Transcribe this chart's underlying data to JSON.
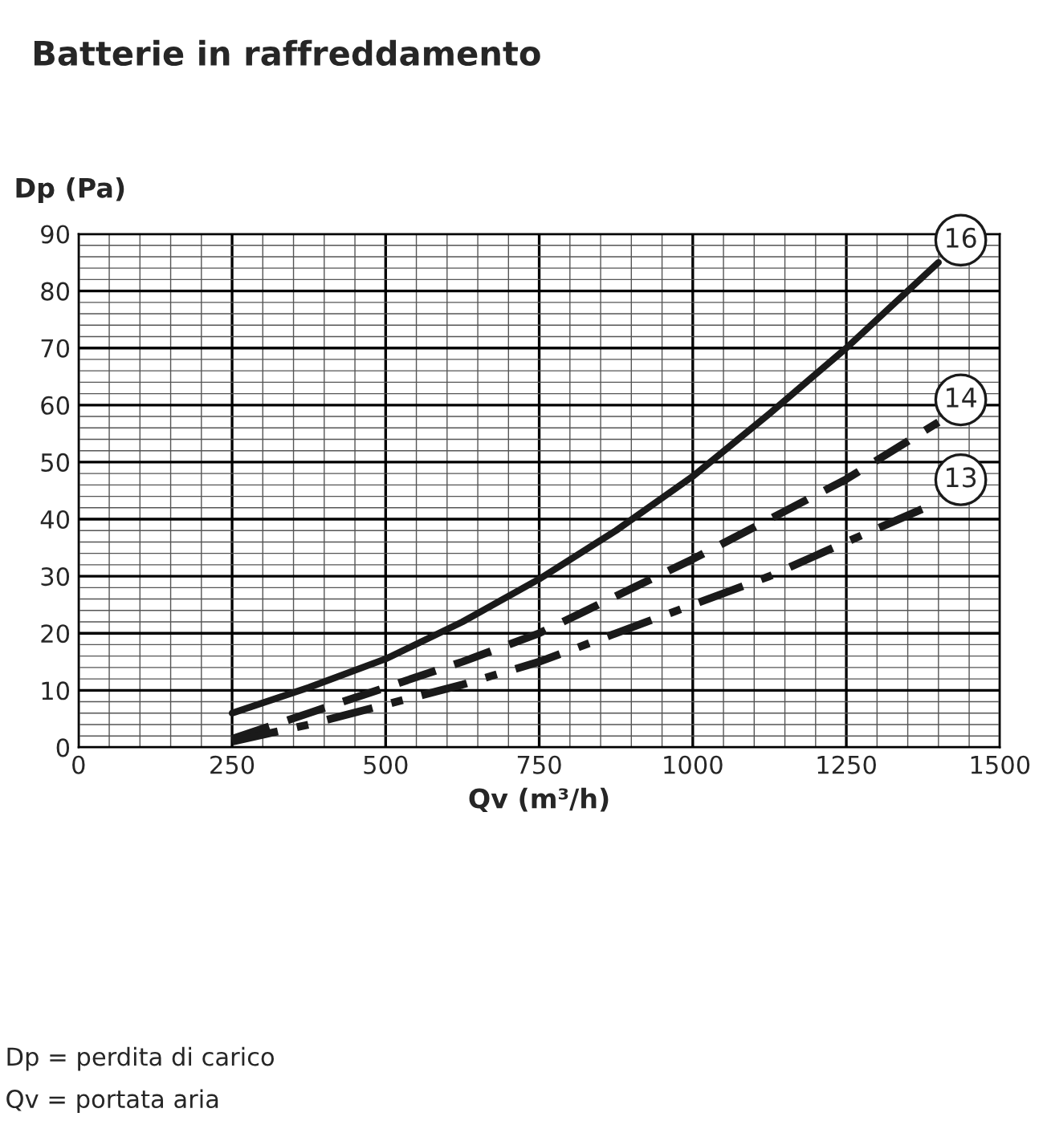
{
  "chart_data": {
    "type": "line",
    "title": "Batterie in raffreddamento",
    "xlabel": "Qv (m³/h)",
    "ylabel": "Dp (Pa)",
    "x": [
      250,
      375,
      500,
      625,
      750,
      875,
      1000,
      1125,
      1250,
      1400
    ],
    "series": [
      {
        "name": "16",
        "color": "#1a1a1a",
        "line_style": "solid",
        "values": [
          6,
          10.5,
          15.5,
          22,
          29.5,
          38,
          47.5,
          58.5,
          70,
          85
        ]
      },
      {
        "name": "14",
        "color": "#1a1a1a",
        "line_style": "dashed",
        "values": [
          1.5,
          6,
          10.5,
          15,
          20,
          26.5,
          33,
          40,
          47,
          57
        ]
      },
      {
        "name": "13",
        "color": "#1a1a1a",
        "line_style": "dashdot",
        "values": [
          1,
          4,
          7.5,
          11,
          15,
          20,
          25,
          30,
          36,
          43
        ]
      }
    ],
    "xlim": [
      0,
      1500
    ],
    "xticks": [
      0,
      250,
      500,
      750,
      1000,
      1250,
      1500
    ],
    "ylim": [
      0,
      90
    ],
    "yticks": [
      0,
      10,
      20,
      30,
      40,
      50,
      60,
      70,
      80,
      90
    ],
    "grid": true,
    "legend": false,
    "annotations": [
      "Dp = perdita di carico",
      "Qv = portata aria"
    ]
  }
}
